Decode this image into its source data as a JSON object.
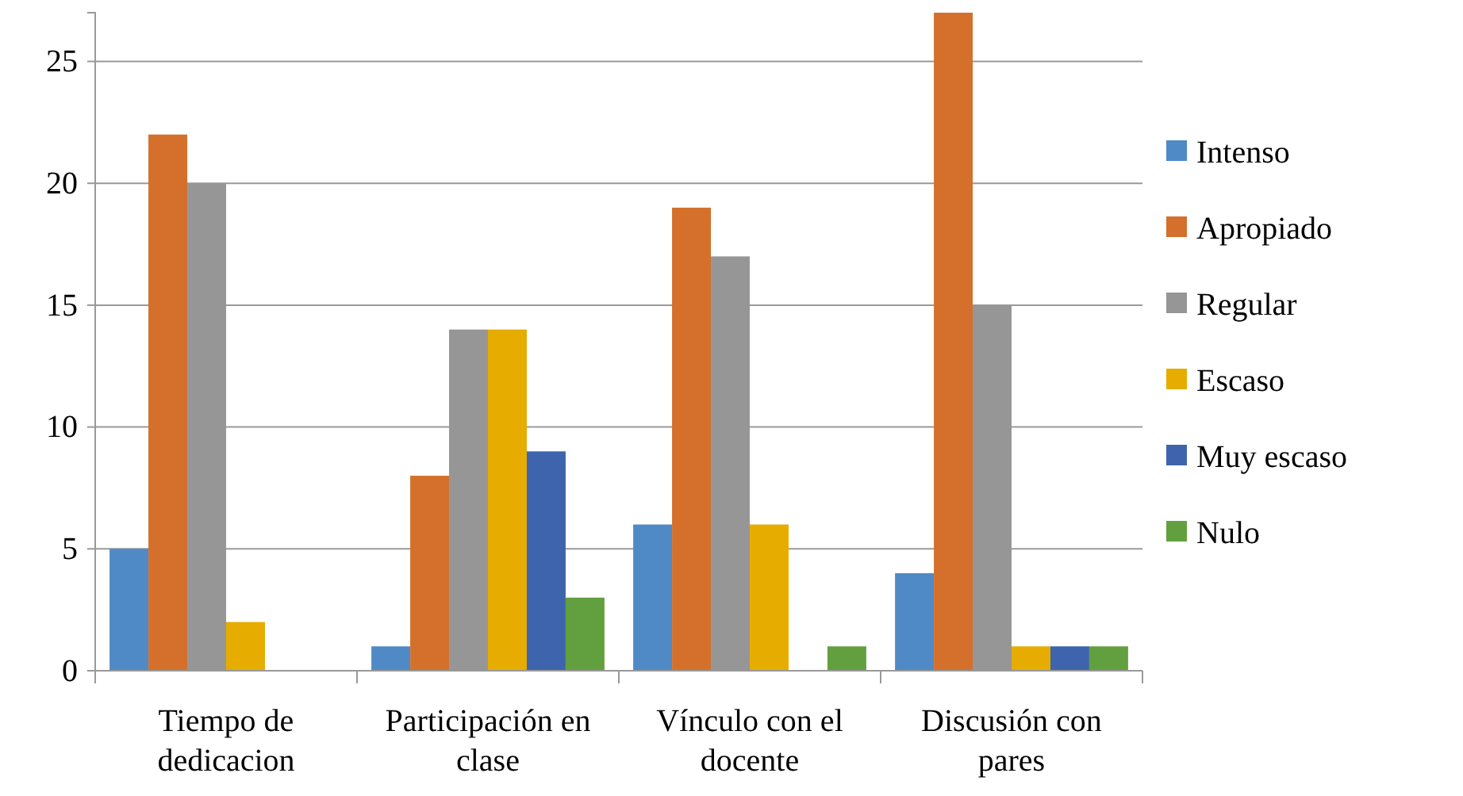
{
  "chart_data": {
    "type": "bar",
    "categories": [
      "Tiempo de dedicacion",
      "Participación en clase",
      "Vínculo con el docente",
      "Discusión con pares"
    ],
    "series": [
      {
        "name": "Intenso",
        "color": "#4f8ac6",
        "values": [
          5,
          1,
          6,
          4
        ]
      },
      {
        "name": "Apropiado",
        "color": "#d4702b",
        "values": [
          22,
          8,
          19,
          27
        ]
      },
      {
        "name": "Regular",
        "color": "#969696",
        "values": [
          20,
          14,
          17,
          15
        ]
      },
      {
        "name": "Escaso",
        "color": "#e6ac00",
        "values": [
          2,
          14,
          6,
          1
        ]
      },
      {
        "name": "Muy escaso",
        "color": "#3e64ad",
        "values": [
          0,
          9,
          0,
          1
        ]
      },
      {
        "name": "Nulo",
        "color": "#62a03f",
        "values": [
          0,
          3,
          1,
          1
        ]
      }
    ],
    "ylim": [
      0,
      27
    ],
    "yticks": [
      0,
      5,
      10,
      15,
      20,
      25
    ],
    "grid": "y",
    "legend": "right"
  }
}
